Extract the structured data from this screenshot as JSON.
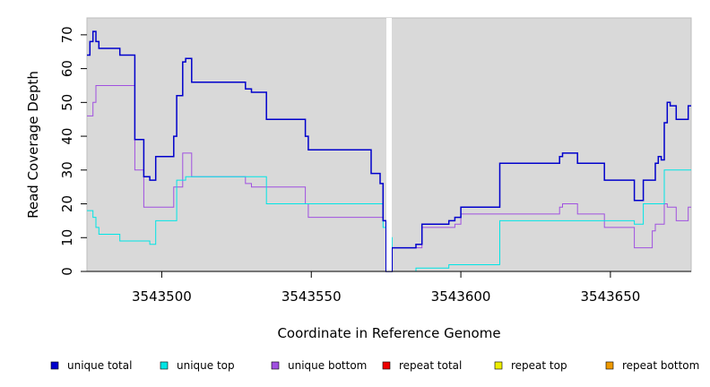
{
  "chart_data": {
    "type": "line",
    "step": true,
    "xlabel": "Coordinate in Reference Genome",
    "ylabel": "Read Coverage Depth",
    "xlim": [
      3543475,
      3543677
    ],
    "ylim": [
      0,
      75
    ],
    "xticks": [
      3543500,
      3543550,
      3543600,
      3543650
    ],
    "xtick_labels": [
      "3543500",
      "3543550",
      "3543600",
      "3543650"
    ],
    "yticks": [
      0,
      10,
      20,
      30,
      40,
      50,
      60,
      70
    ],
    "ytick_labels": [
      "0",
      "10",
      "20",
      "30",
      "40",
      "50",
      "60",
      "70"
    ],
    "plot_background": "#d9d9d9",
    "grid": false,
    "gap_marker_x": 3543576,
    "legend_position": "bottom",
    "series": [
      {
        "name": "unique total",
        "color": "#0000cc",
        "points": [
          [
            3543475,
            64
          ],
          [
            3543476,
            68
          ],
          [
            3543477,
            71
          ],
          [
            3543478,
            68
          ],
          [
            3543479,
            66
          ],
          [
            3543486,
            64
          ],
          [
            3543491,
            39
          ],
          [
            3543494,
            28
          ],
          [
            3543496,
            27
          ],
          [
            3543498,
            34
          ],
          [
            3543504,
            40
          ],
          [
            3543505,
            52
          ],
          [
            3543507,
            62
          ],
          [
            3543508,
            63
          ],
          [
            3543510,
            56
          ],
          [
            3543528,
            54
          ],
          [
            3543530,
            53
          ],
          [
            3543535,
            45
          ],
          [
            3543548,
            40
          ],
          [
            3543549,
            36
          ],
          [
            3543570,
            29
          ],
          [
            3543573,
            26
          ],
          [
            3543574,
            15
          ],
          [
            3543575,
            0
          ],
          [
            3543576,
            0
          ],
          [
            3543577,
            7
          ],
          [
            3543585,
            8
          ],
          [
            3543587,
            14
          ],
          [
            3543596,
            15
          ],
          [
            3543598,
            16
          ],
          [
            3543600,
            19
          ],
          [
            3543613,
            32
          ],
          [
            3543633,
            34
          ],
          [
            3543634,
            35
          ],
          [
            3543639,
            32
          ],
          [
            3543648,
            27
          ],
          [
            3543658,
            21
          ],
          [
            3543661,
            27
          ],
          [
            3543665,
            32
          ],
          [
            3543666,
            34
          ],
          [
            3543667,
            33
          ],
          [
            3543668,
            44
          ],
          [
            3543669,
            50
          ],
          [
            3543670,
            49
          ],
          [
            3543672,
            45
          ],
          [
            3543676,
            49
          ],
          [
            3543677,
            49
          ]
        ]
      },
      {
        "name": "unique top",
        "color": "#00e5e5",
        "points": [
          [
            3543475,
            18
          ],
          [
            3543477,
            16
          ],
          [
            3543478,
            13
          ],
          [
            3543479,
            11
          ],
          [
            3543486,
            9
          ],
          [
            3543496,
            8
          ],
          [
            3543498,
            15
          ],
          [
            3543505,
            27
          ],
          [
            3543508,
            28
          ],
          [
            3543535,
            20
          ],
          [
            3543574,
            13
          ],
          [
            3543576,
            10
          ],
          [
            3543577,
            0
          ],
          [
            3543584,
            0
          ],
          [
            3543585,
            1
          ],
          [
            3543596,
            2
          ],
          [
            3543613,
            15
          ],
          [
            3543658,
            14
          ],
          [
            3543661,
            20
          ],
          [
            3543668,
            30
          ],
          [
            3543677,
            30
          ]
        ]
      },
      {
        "name": "unique bottom",
        "color": "#a050e0",
        "points": [
          [
            3543475,
            46
          ],
          [
            3543477,
            50
          ],
          [
            3543478,
            55
          ],
          [
            3543491,
            30
          ],
          [
            3543494,
            19
          ],
          [
            3543504,
            25
          ],
          [
            3543507,
            35
          ],
          [
            3543510,
            28
          ],
          [
            3543528,
            26
          ],
          [
            3543530,
            25
          ],
          [
            3543548,
            20
          ],
          [
            3543549,
            16
          ],
          [
            3543574,
            15
          ],
          [
            3543576,
            0
          ],
          [
            3543577,
            7
          ],
          [
            3543587,
            13
          ],
          [
            3543598,
            14
          ],
          [
            3543600,
            17
          ],
          [
            3543633,
            19
          ],
          [
            3543634,
            20
          ],
          [
            3543639,
            17
          ],
          [
            3543648,
            13
          ],
          [
            3543658,
            7
          ],
          [
            3543664,
            12
          ],
          [
            3543665,
            14
          ],
          [
            3543668,
            20
          ],
          [
            3543669,
            19
          ],
          [
            3543672,
            15
          ],
          [
            3543676,
            19
          ],
          [
            3543677,
            19
          ]
        ]
      },
      {
        "name": "repeat total",
        "color": "#ee0000",
        "points": [
          [
            3543475,
            0
          ],
          [
            3543677,
            0
          ]
        ]
      },
      {
        "name": "repeat top",
        "color": "#eeee00",
        "points": [
          [
            3543475,
            0
          ],
          [
            3543677,
            0
          ]
        ]
      },
      {
        "name": "repeat bottom",
        "color": "#ee9900",
        "points": [
          [
            3543475,
            0
          ],
          [
            3543677,
            0
          ]
        ]
      }
    ]
  }
}
